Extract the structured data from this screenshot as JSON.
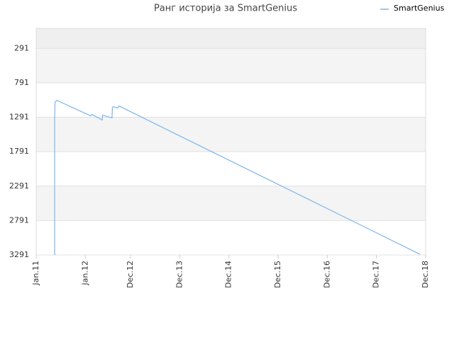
{
  "chart_data": {
    "type": "line",
    "title": "Ранг историја за SmartGenius",
    "x": [
      4.5,
      4.5,
      4.5,
      4.6,
      5.0,
      13.3,
      13.6,
      16.1,
      16.2,
      18.5,
      18.6,
      18.8,
      19.9,
      20.2,
      93.6
    ],
    "series": [
      {
        "name": "SmartGenius",
        "color": "#7cb5ec",
        "values": [
          3291,
          1515,
          1331,
          1076,
          1045,
          1270,
          1250,
          1331,
          1260,
          1300,
          1147,
          1137,
          1157,
          1127,
          3280
        ]
      }
    ],
    "xlim": [
      0,
      95
    ],
    "xticks": [
      {
        "value": 0,
        "label": "Jan.11"
      },
      {
        "value": 12,
        "label": "Jan.12"
      },
      {
        "value": 23,
        "label": "Dec.12"
      },
      {
        "value": 35,
        "label": "Dec.13"
      },
      {
        "value": 47,
        "label": "Dec.14"
      },
      {
        "value": 59,
        "label": "Dec.15"
      },
      {
        "value": 71,
        "label": "Dec.16"
      },
      {
        "value": 83,
        "label": "Dec.17"
      },
      {
        "value": 95,
        "label": "Dec.18"
      }
    ],
    "ylim": [
      3291,
      0
    ],
    "yticks": [
      291,
      791,
      1291,
      1791,
      2291,
      2791,
      3291
    ],
    "grid": true,
    "legend": "top-right"
  }
}
